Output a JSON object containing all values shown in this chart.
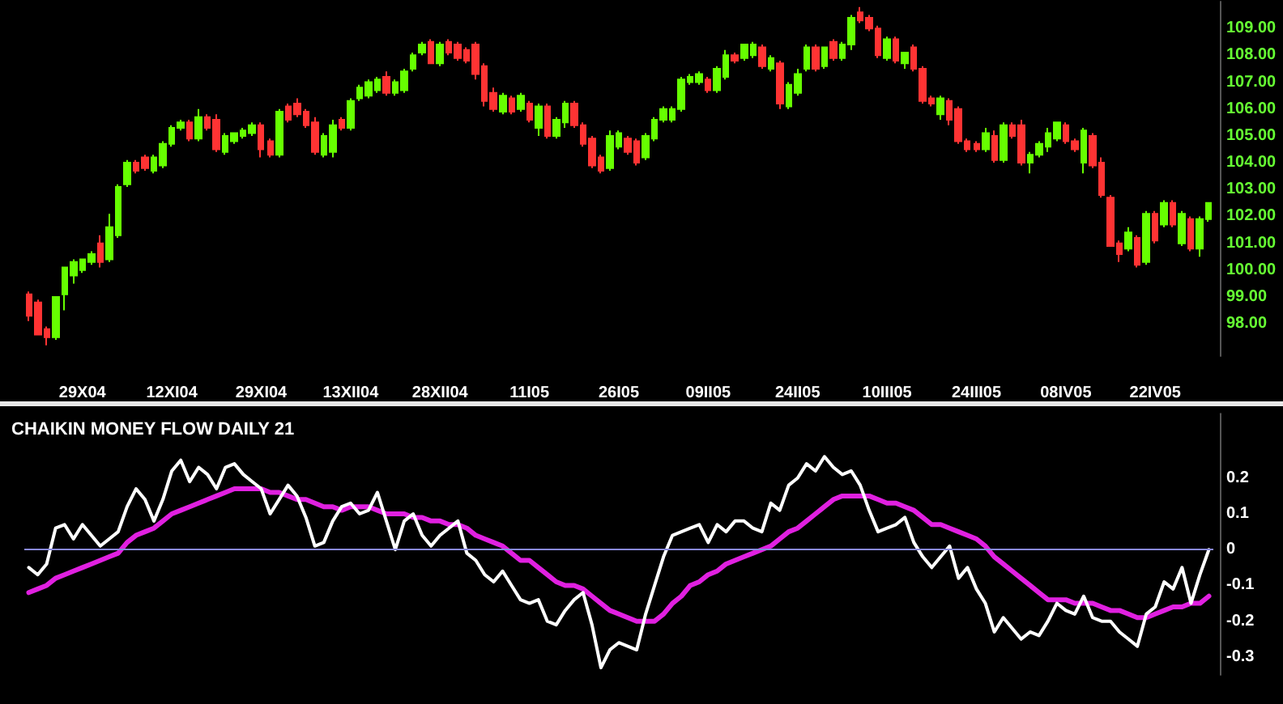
{
  "chart_data": [
    {
      "type": "candlestick",
      "categories": [
        null,
        null,
        null,
        null,
        null,
        null,
        "29X04",
        null,
        null,
        null,
        null,
        null,
        null,
        null,
        null,
        null,
        "12XI04",
        null,
        null,
        null,
        null,
        null,
        null,
        null,
        null,
        null,
        "29XI04",
        null,
        null,
        null,
        null,
        null,
        null,
        null,
        null,
        null,
        "13XII04",
        null,
        null,
        null,
        null,
        null,
        null,
        null,
        null,
        null,
        "28XII04",
        null,
        null,
        null,
        null,
        null,
        null,
        null,
        null,
        null,
        "11I05",
        null,
        null,
        null,
        null,
        null,
        null,
        null,
        null,
        null,
        "26I05",
        null,
        null,
        null,
        null,
        null,
        null,
        null,
        null,
        null,
        "09II05",
        null,
        null,
        null,
        null,
        null,
        null,
        null,
        null,
        null,
        "24II05",
        null,
        null,
        null,
        null,
        null,
        null,
        null,
        null,
        null,
        "10III05",
        null,
        null,
        null,
        null,
        null,
        null,
        null,
        null,
        null,
        "24III05",
        null,
        null,
        null,
        null,
        null,
        null,
        null,
        null,
        null,
        "08IV05",
        null,
        null,
        null,
        null,
        null,
        null,
        null,
        null,
        null,
        "22IV05",
        null,
        null,
        null,
        null,
        null,
        null
      ],
      "ohlc": [
        [
          99.1,
          99.2,
          98.1,
          98.3
        ],
        [
          98.8,
          98.9,
          97.6,
          97.6
        ],
        [
          97.8,
          97.9,
          97.2,
          97.5
        ],
        [
          97.5,
          99.0,
          97.4,
          99.0
        ],
        [
          99.1,
          100.1,
          98.5,
          100.1
        ],
        [
          99.8,
          100.4,
          99.5,
          100.3
        ],
        [
          100.0,
          100.4,
          99.9,
          100.4
        ],
        [
          100.3,
          100.7,
          100.2,
          100.6
        ],
        [
          101.0,
          101.3,
          100.1,
          100.3
        ],
        [
          100.4,
          102.1,
          100.3,
          101.6
        ],
        [
          101.3,
          103.2,
          101.2,
          103.1
        ],
        [
          103.2,
          104.1,
          103.1,
          104.0
        ],
        [
          104.0,
          104.1,
          103.6,
          103.7
        ],
        [
          104.2,
          104.3,
          103.7,
          103.8
        ],
        [
          103.7,
          104.3,
          103.6,
          104.2
        ],
        [
          103.9,
          104.8,
          103.8,
          104.7
        ],
        [
          104.7,
          105.4,
          104.6,
          105.3
        ],
        [
          105.3,
          105.6,
          105.2,
          105.5
        ],
        [
          105.5,
          105.6,
          104.8,
          104.9
        ],
        [
          104.9,
          106.0,
          104.8,
          105.7
        ],
        [
          105.7,
          105.8,
          105.2,
          105.3
        ],
        [
          105.6,
          105.8,
          104.4,
          104.5
        ],
        [
          104.4,
          105.1,
          104.3,
          105.0
        ],
        [
          104.8,
          105.1,
          104.7,
          105.1
        ],
        [
          105.0,
          105.3,
          104.9,
          105.2
        ],
        [
          105.1,
          105.5,
          105.0,
          105.4
        ],
        [
          105.4,
          105.5,
          104.2,
          104.5
        ],
        [
          104.8,
          104.9,
          104.2,
          104.3
        ],
        [
          104.3,
          106.0,
          104.2,
          105.9
        ],
        [
          106.1,
          106.2,
          105.5,
          105.6
        ],
        [
          106.2,
          106.4,
          105.7,
          105.8
        ],
        [
          105.9,
          106.0,
          105.3,
          105.4
        ],
        [
          105.5,
          105.7,
          104.3,
          104.4
        ],
        [
          104.3,
          105.1,
          104.2,
          105.0
        ],
        [
          104.4,
          105.6,
          104.2,
          105.4
        ],
        [
          105.6,
          105.7,
          105.2,
          105.3
        ],
        [
          105.3,
          106.4,
          105.2,
          106.3
        ],
        [
          106.4,
          106.9,
          106.3,
          106.8
        ],
        [
          106.5,
          107.1,
          106.4,
          107.0
        ],
        [
          106.7,
          107.2,
          106.6,
          107.1
        ],
        [
          107.2,
          107.4,
          106.5,
          106.6
        ],
        [
          106.6,
          107.1,
          106.5,
          107.0
        ],
        [
          106.7,
          107.5,
          106.6,
          107.4
        ],
        [
          107.5,
          108.1,
          107.4,
          108.0
        ],
        [
          108.1,
          108.5,
          108.0,
          108.4
        ],
        [
          108.5,
          108.6,
          107.7,
          107.7
        ],
        [
          107.7,
          108.5,
          107.6,
          108.4
        ],
        [
          108.5,
          108.6,
          108.0,
          108.1
        ],
        [
          108.4,
          108.5,
          107.8,
          107.9
        ],
        [
          108.2,
          108.3,
          107.7,
          107.8
        ],
        [
          108.4,
          108.5,
          107.1,
          107.3
        ],
        [
          107.6,
          107.7,
          106.1,
          106.3
        ],
        [
          106.6,
          106.8,
          105.9,
          106.0
        ],
        [
          105.9,
          106.6,
          105.8,
          106.5
        ],
        [
          106.4,
          106.5,
          105.8,
          105.9
        ],
        [
          106.0,
          106.6,
          105.9,
          106.5
        ],
        [
          106.2,
          106.3,
          105.5,
          105.6
        ],
        [
          105.3,
          106.2,
          105.0,
          106.1
        ],
        [
          106.1,
          106.2,
          104.9,
          105.0
        ],
        [
          105.0,
          105.7,
          104.9,
          105.6
        ],
        [
          105.5,
          106.3,
          105.3,
          106.2
        ],
        [
          106.2,
          106.3,
          105.3,
          105.4
        ],
        [
          105.4,
          105.5,
          104.6,
          104.7
        ],
        [
          104.9,
          105.0,
          103.8,
          103.9
        ],
        [
          104.2,
          104.3,
          103.6,
          103.7
        ],
        [
          103.8,
          105.2,
          103.7,
          105.0
        ],
        [
          104.6,
          105.2,
          104.5,
          105.1
        ],
        [
          104.9,
          105.0,
          104.3,
          104.4
        ],
        [
          104.8,
          104.9,
          103.9,
          104.0
        ],
        [
          104.2,
          105.1,
          104.1,
          105.0
        ],
        [
          104.9,
          105.7,
          104.8,
          105.6
        ],
        [
          105.6,
          106.1,
          105.5,
          106.0
        ],
        [
          105.6,
          106.1,
          105.5,
          106.0
        ],
        [
          106.0,
          107.2,
          105.9,
          107.1
        ],
        [
          107.0,
          107.3,
          106.9,
          107.2
        ],
        [
          107.0,
          107.4,
          106.9,
          107.3
        ],
        [
          107.1,
          107.2,
          106.6,
          106.7
        ],
        [
          106.7,
          107.6,
          106.6,
          107.5
        ],
        [
          107.2,
          108.2,
          107.1,
          108.0
        ],
        [
          108.0,
          108.1,
          107.7,
          107.8
        ],
        [
          107.9,
          108.4,
          107.8,
          108.4
        ],
        [
          108.0,
          108.5,
          107.9,
          108.4
        ],
        [
          108.3,
          108.4,
          107.5,
          107.6
        ],
        [
          107.5,
          108.0,
          107.4,
          107.9
        ],
        [
          107.7,
          107.8,
          106.0,
          106.2
        ],
        [
          106.1,
          107.0,
          106.0,
          106.9
        ],
        [
          106.6,
          107.5,
          106.5,
          107.3
        ],
        [
          107.5,
          108.4,
          107.4,
          108.3
        ],
        [
          108.3,
          108.4,
          107.4,
          107.5
        ],
        [
          107.6,
          108.3,
          107.5,
          108.3
        ],
        [
          108.5,
          108.6,
          107.8,
          107.9
        ],
        [
          107.9,
          108.5,
          107.8,
          108.4
        ],
        [
          108.4,
          109.5,
          108.2,
          109.4
        ],
        [
          109.6,
          109.8,
          109.2,
          109.3
        ],
        [
          109.4,
          109.5,
          108.9,
          109.0
        ],
        [
          109.0,
          109.1,
          107.9,
          108.0
        ],
        [
          107.9,
          108.7,
          107.8,
          108.6
        ],
        [
          108.6,
          108.7,
          107.7,
          107.8
        ],
        [
          107.7,
          108.1,
          107.5,
          108.1
        ],
        [
          108.3,
          108.4,
          107.4,
          107.5
        ],
        [
          107.5,
          107.6,
          106.2,
          106.3
        ],
        [
          106.4,
          106.5,
          106.1,
          106.2
        ],
        [
          105.8,
          106.5,
          105.6,
          106.4
        ],
        [
          106.3,
          106.4,
          105.4,
          105.6
        ],
        [
          106.0,
          106.1,
          104.7,
          104.8
        ],
        [
          104.8,
          104.9,
          104.4,
          104.5
        ],
        [
          104.7,
          104.8,
          104.4,
          104.5
        ],
        [
          104.5,
          105.3,
          104.4,
          105.1
        ],
        [
          105.0,
          105.2,
          104.0,
          104.1
        ],
        [
          104.1,
          105.5,
          104.0,
          105.4
        ],
        [
          105.4,
          105.5,
          104.9,
          105.0
        ],
        [
          105.4,
          105.6,
          103.9,
          104.0
        ],
        [
          104.0,
          104.4,
          103.6,
          104.3
        ],
        [
          104.3,
          104.8,
          104.2,
          104.7
        ],
        [
          104.6,
          105.3,
          104.4,
          105.1
        ],
        [
          104.9,
          105.5,
          104.8,
          105.5
        ],
        [
          105.4,
          105.5,
          104.7,
          104.8
        ],
        [
          104.8,
          104.9,
          104.4,
          104.5
        ],
        [
          104.0,
          105.3,
          103.6,
          105.2
        ],
        [
          105.0,
          105.1,
          103.8,
          103.9
        ],
        [
          104.0,
          104.2,
          102.7,
          102.8
        ],
        [
          102.7,
          102.8,
          100.9,
          100.9
        ],
        [
          101.0,
          101.1,
          100.3,
          100.6
        ],
        [
          100.8,
          101.6,
          100.7,
          101.4
        ],
        [
          101.2,
          101.3,
          100.1,
          100.2
        ],
        [
          100.3,
          102.2,
          100.2,
          102.1
        ],
        [
          102.1,
          102.2,
          101.0,
          101.1
        ],
        [
          101.7,
          102.6,
          101.6,
          102.5
        ],
        [
          102.5,
          102.6,
          101.6,
          101.7
        ],
        [
          101.0,
          102.2,
          100.9,
          102.1
        ],
        [
          101.9,
          102.0,
          100.7,
          100.8
        ],
        [
          100.8,
          102.0,
          100.5,
          101.9
        ],
        [
          101.9,
          102.5,
          101.8,
          102.5
        ]
      ],
      "ylim": [
        96.8,
        110
      ],
      "yticks": [
        {
          "value": 98,
          "label": "98.00"
        },
        {
          "value": 99,
          "label": "99.00"
        },
        {
          "value": 100,
          "label": "100.00"
        },
        {
          "value": 101,
          "label": "101.00"
        },
        {
          "value": 102,
          "label": "102.00"
        },
        {
          "value": 103,
          "label": "103.00"
        },
        {
          "value": 104,
          "label": "104.00"
        },
        {
          "value": 105,
          "label": "105.00"
        },
        {
          "value": 106,
          "label": "106.00"
        },
        {
          "value": 107,
          "label": "107.00"
        },
        {
          "value": 108,
          "label": "108.00"
        },
        {
          "value": 109,
          "label": "109.00"
        }
      ]
    },
    {
      "type": "line",
      "title": "CHAIKIN MONEY FLOW DAILY 21",
      "line_style": "solid",
      "categories": [
        null,
        null,
        null,
        null,
        null,
        null,
        null,
        null,
        null,
        null,
        null,
        null,
        null,
        null,
        null,
        null,
        null,
        null,
        null,
        null,
        null,
        null,
        null,
        null,
        null,
        null,
        null,
        null,
        null,
        null,
        null,
        null,
        null,
        null,
        null,
        null,
        null,
        null,
        null,
        null,
        null,
        null,
        null,
        null,
        null,
        null,
        null,
        null,
        null,
        null,
        null,
        null,
        null,
        null,
        null,
        null,
        null,
        null,
        null,
        null,
        null,
        null,
        null,
        null,
        null,
        null,
        null,
        null,
        null,
        null,
        null,
        null,
        null,
        null,
        null,
        null,
        null,
        null,
        null,
        null,
        null,
        null,
        null,
        null,
        null,
        null,
        null,
        null,
        null,
        null,
        null,
        null,
        null,
        null,
        null,
        null,
        null,
        null,
        null,
        null,
        null,
        null,
        null,
        null,
        null,
        null,
        null,
        null,
        null,
        null,
        null,
        null,
        null,
        null,
        null,
        null,
        null,
        null,
        null,
        null,
        null,
        null,
        null,
        null,
        null,
        null,
        null,
        null,
        null,
        null,
        null,
        null,
        null
      ],
      "series": [
        {
          "color": "#e020e0",
          "values": [
            -0.12,
            -0.11,
            -0.1,
            -0.08,
            -0.07,
            -0.06,
            -0.05,
            -0.04,
            -0.03,
            -0.02,
            -0.01,
            0.02,
            0.04,
            0.05,
            0.06,
            0.08,
            0.1,
            0.11,
            0.12,
            0.13,
            0.14,
            0.15,
            0.16,
            0.17,
            0.17,
            0.17,
            0.17,
            0.16,
            0.16,
            0.15,
            0.14,
            0.14,
            0.13,
            0.12,
            0.12,
            0.11,
            0.12,
            0.12,
            0.12,
            0.11,
            0.1,
            0.1,
            0.1,
            0.09,
            0.09,
            0.08,
            0.08,
            0.07,
            0.07,
            0.06,
            0.04,
            0.03,
            0.02,
            0.01,
            -0.01,
            -0.03,
            -0.03,
            -0.05,
            -0.07,
            -0.09,
            -0.1,
            -0.1,
            -0.11,
            -0.13,
            -0.15,
            -0.17,
            -0.18,
            -0.19,
            -0.2,
            -0.2,
            -0.2,
            -0.18,
            -0.15,
            -0.13,
            -0.1,
            -0.09,
            -0.07,
            -0.06,
            -0.04,
            -0.03,
            -0.02,
            -0.01,
            0.0,
            0.01,
            0.03,
            0.05,
            0.06,
            0.08,
            0.1,
            0.12,
            0.14,
            0.15,
            0.15,
            0.15,
            0.15,
            0.14,
            0.13,
            0.13,
            0.12,
            0.11,
            0.09,
            0.07,
            0.07,
            0.06,
            0.05,
            0.04,
            0.03,
            0.01,
            -0.02,
            -0.04,
            -0.06,
            -0.08,
            -0.1,
            -0.12,
            -0.14,
            -0.14,
            -0.14,
            -0.15,
            -0.15,
            -0.15,
            -0.16,
            -0.17,
            -0.17,
            -0.18,
            -0.19,
            -0.19,
            -0.18,
            -0.17,
            -0.16,
            -0.16,
            -0.15,
            -0.15,
            -0.13
          ]
        },
        {
          "color": "#ffffff",
          "values": [
            -0.05,
            -0.07,
            -0.04,
            0.06,
            0.07,
            0.03,
            0.07,
            0.04,
            0.01,
            0.03,
            0.05,
            0.12,
            0.17,
            0.14,
            0.08,
            0.14,
            0.22,
            0.25,
            0.19,
            0.23,
            0.21,
            0.17,
            0.23,
            0.24,
            0.21,
            0.19,
            0.17,
            0.1,
            0.14,
            0.18,
            0.15,
            0.09,
            0.01,
            0.02,
            0.08,
            0.12,
            0.13,
            0.1,
            0.11,
            0.16,
            0.08,
            0.0,
            0.08,
            0.1,
            0.04,
            0.01,
            0.04,
            0.06,
            0.08,
            -0.01,
            -0.03,
            -0.07,
            -0.09,
            -0.06,
            -0.1,
            -0.14,
            -0.15,
            -0.14,
            -0.2,
            -0.21,
            -0.17,
            -0.14,
            -0.12,
            -0.21,
            -0.33,
            -0.28,
            -0.26,
            -0.27,
            -0.28,
            -0.18,
            -0.1,
            -0.02,
            0.04,
            0.05,
            0.06,
            0.07,
            0.02,
            0.07,
            0.05,
            0.08,
            0.08,
            0.06,
            0.05,
            0.13,
            0.11,
            0.18,
            0.2,
            0.24,
            0.22,
            0.26,
            0.23,
            0.21,
            0.22,
            0.18,
            0.11,
            0.05,
            0.06,
            0.07,
            0.09,
            0.02,
            -0.02,
            -0.05,
            -0.02,
            0.01,
            -0.08,
            -0.05,
            -0.11,
            -0.15,
            -0.23,
            -0.19,
            -0.22,
            -0.25,
            -0.23,
            -0.24,
            -0.2,
            -0.15,
            -0.17,
            -0.18,
            -0.13,
            -0.19,
            -0.2,
            -0.2,
            -0.23,
            -0.25,
            -0.27,
            -0.18,
            -0.16,
            -0.09,
            -0.11,
            -0.05,
            -0.15,
            -0.07,
            0.0
          ]
        }
      ],
      "ylim": [
        -0.35,
        0.38
      ],
      "yticks": [
        -0.3,
        -0.2,
        -0.1,
        0,
        0.1,
        0.2
      ],
      "ref_lines": [
        {
          "axis": "y",
          "value": 0,
          "color": "#8888dd"
        }
      ]
    }
  ]
}
